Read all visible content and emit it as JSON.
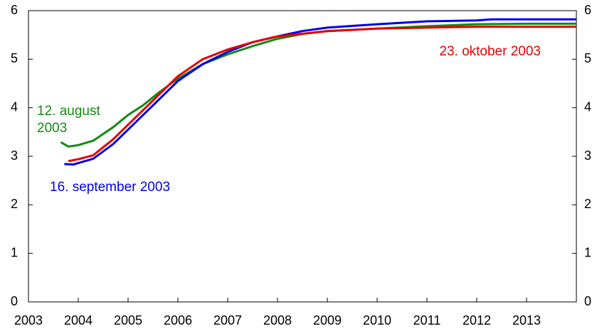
{
  "chart_data": {
    "type": "line",
    "xlim": [
      2003,
      2014
    ],
    "xticks": [
      2003,
      2004,
      2005,
      2006,
      2007,
      2008,
      2009,
      2010,
      2011,
      2012,
      2013
    ],
    "ylim": [
      0,
      6
    ],
    "yticks": [
      0,
      1,
      2,
      3,
      4,
      5,
      6
    ],
    "y2lim": [
      0,
      6
    ],
    "y2ticks": [
      0,
      1,
      2,
      3,
      4,
      5,
      6
    ],
    "series": [
      {
        "name": "12. august 2003",
        "color": "#138a13",
        "x": [
          2003.65,
          2003.8,
          2004.0,
          2004.3,
          2004.7,
          2005.0,
          2005.3,
          2005.6,
          2006.0,
          2006.5,
          2007.0,
          2007.5,
          2008.0,
          2008.5,
          2009.0,
          2010.0,
          2011.0,
          2012.0,
          2013.0,
          2014.0
        ],
        "values": [
          3.29,
          3.2,
          3.23,
          3.32,
          3.6,
          3.85,
          4.05,
          4.3,
          4.6,
          4.9,
          5.1,
          5.27,
          5.42,
          5.52,
          5.58,
          5.63,
          5.68,
          5.72,
          5.73,
          5.73
        ]
      },
      {
        "name": "16. september 2003",
        "color": "#0000e6",
        "x": [
          2003.72,
          2003.9,
          2004.3,
          2004.7,
          2005.0,
          2005.3,
          2005.5,
          2006.0,
          2006.5,
          2007.0,
          2007.5,
          2008.0,
          2008.5,
          2009.0,
          2010.0,
          2011.0,
          2012.0,
          2012.3,
          2014.0
        ],
        "values": [
          2.84,
          2.83,
          2.95,
          3.25,
          3.55,
          3.85,
          4.05,
          4.55,
          4.9,
          5.15,
          5.35,
          5.47,
          5.58,
          5.65,
          5.72,
          5.78,
          5.8,
          5.82,
          5.82
        ]
      },
      {
        "name": "23. oktober 2003",
        "color": "#e60000",
        "x": [
          2003.8,
          2004.0,
          2004.3,
          2004.7,
          2005.0,
          2005.5,
          2006.0,
          2006.5,
          2007.0,
          2007.5,
          2008.0,
          2009.0,
          2010.0,
          2011.0,
          2012.0,
          2014.0
        ],
        "values": [
          2.9,
          2.94,
          3.02,
          3.35,
          3.65,
          4.15,
          4.65,
          5.0,
          5.2,
          5.35,
          5.47,
          5.58,
          5.63,
          5.65,
          5.67,
          5.67
        ]
      }
    ]
  }
}
